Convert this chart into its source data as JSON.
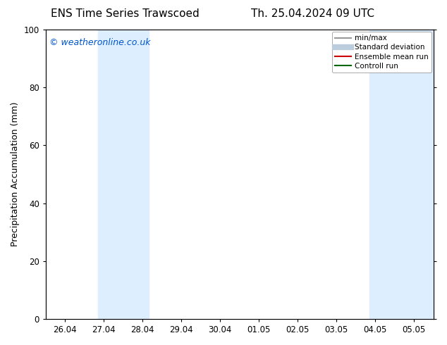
{
  "title_left": "ENS Time Series Trawscoed",
  "title_right": "Th. 25.04.2024 09 UTC",
  "ylabel": "Precipitation Accumulation (mm)",
  "ylim": [
    0,
    100
  ],
  "yticks": [
    0,
    20,
    40,
    60,
    80,
    100
  ],
  "x_tick_labels": [
    "26.04",
    "27.04",
    "28.04",
    "29.04",
    "30.04",
    "01.05",
    "02.05",
    "03.05",
    "04.05",
    "05.05"
  ],
  "x_tick_positions": [
    0,
    1,
    2,
    3,
    4,
    5,
    6,
    7,
    8,
    9
  ],
  "xlim": [
    -0.5,
    9.5
  ],
  "shaded_bands": [
    {
      "xmin": 0.85,
      "xmax": 2.15,
      "color": "#ddeeff"
    },
    {
      "xmin": 7.85,
      "xmax": 9.5,
      "color": "#ddeeff"
    }
  ],
  "watermark_text": "© weatheronline.co.uk",
  "watermark_color": "#0055cc",
  "legend_items": [
    {
      "label": "min/max",
      "color": "#999999",
      "lw": 1.5,
      "style": "solid"
    },
    {
      "label": "Standard deviation",
      "color": "#bbccdd",
      "lw": 6,
      "style": "solid"
    },
    {
      "label": "Ensemble mean run",
      "color": "#cc0000",
      "lw": 1.5,
      "style": "solid"
    },
    {
      "label": "Controll run",
      "color": "#006600",
      "lw": 1.5,
      "style": "solid"
    }
  ],
  "bg_color": "#ffffff",
  "plot_bg_color": "#ffffff",
  "tick_label_fontsize": 8.5,
  "axis_label_fontsize": 9,
  "title_fontsize": 11,
  "watermark_fontsize": 9
}
